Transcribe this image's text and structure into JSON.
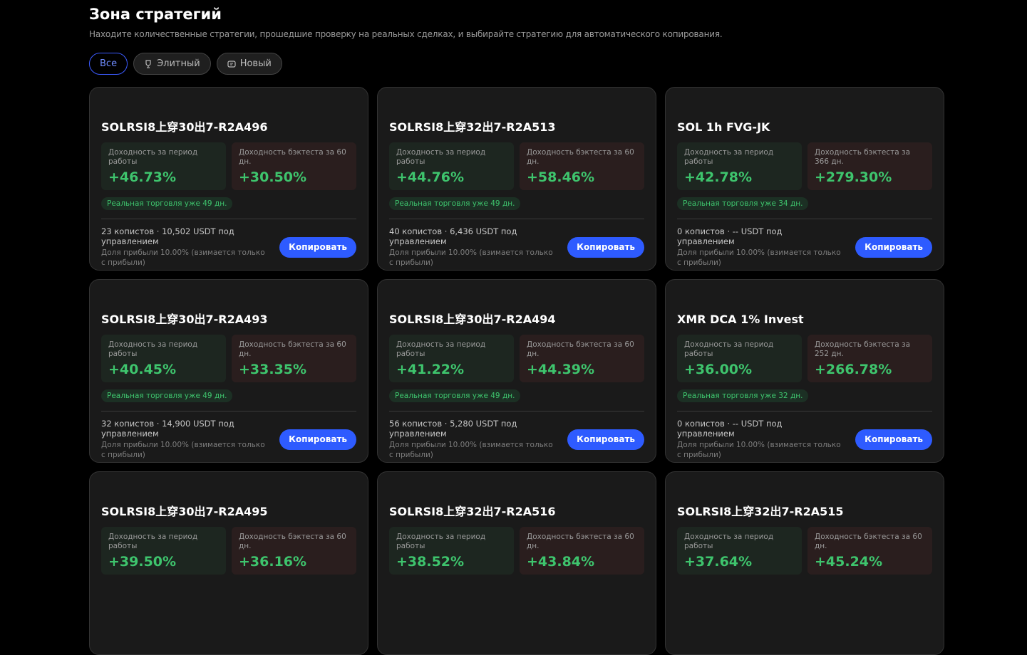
{
  "header": {
    "title": "Зона стратегий",
    "subtitle": "Находите количественные стратегии, прошедшие проверку на реальных сделках, и выбирайте стратегию для автоматического копирования."
  },
  "tabs": [
    "Все",
    "Элитный",
    "Новый"
  ],
  "cards": [
    {
      "name": "SOLRSI8上穿30出7-R2A496",
      "stat1_label": "Доходность за период работы",
      "stat1_value": "+46.73%",
      "stat2_label": "Доходность бэктеста за 60 дн.",
      "stat2_value": "+30.50%",
      "badge": "Реальная торговля уже 49 дн.",
      "info": "23 копистов · 10,502 USDT под управлением",
      "share": "Доля прибыли 10.00% (взимается только с прибыли)",
      "button": "Копировать"
    },
    {
      "name": "SOLRSI8上穿32出7-R2A513",
      "stat1_label": "Доходность за период работы",
      "stat1_value": "+44.76%",
      "stat2_label": "Доходность бэктеста за 60 дн.",
      "stat2_value": "+58.46%",
      "badge": "Реальная торговля уже 49 дн.",
      "info": "40 копистов · 6,436 USDT под управлением",
      "share": "Доля прибыли 10.00% (взимается только с прибыли)",
      "button": "Копировать"
    },
    {
      "name": "SOL 1h FVG-JK",
      "stat1_label": "Доходность за период работы",
      "stat1_value": "+42.78%",
      "stat2_label": "Доходность бэктеста за 366 дн.",
      "stat2_value": "+279.30%",
      "badge": "Реальная торговля уже 34 дн.",
      "info": "0 копистов · -- USDT под управлением",
      "share": "Доля прибыли 10.00% (взимается только с прибыли)",
      "button": "Копировать"
    },
    {
      "name": "SOLRSI8上穿30出7-R2A493",
      "stat1_label": "Доходность за период работы",
      "stat1_value": "+40.45%",
      "stat2_label": "Доходность бэктеста за 60 дн.",
      "stat2_value": "+33.35%",
      "badge": "Реальная торговля уже 49 дн.",
      "info": "32 копистов · 14,900 USDT под управлением",
      "share": "Доля прибыли 10.00% (взимается только с прибыли)",
      "button": "Копировать"
    },
    {
      "name": "SOLRSI8上穿30出7-R2A494",
      "stat1_label": "Доходность за период работы",
      "stat1_value": "+41.22%",
      "stat2_label": "Доходность бэктеста за 60 дн.",
      "stat2_value": "+44.39%",
      "badge": "Реальная торговля уже 49 дн.",
      "info": "56 копистов · 5,280 USDT под управлением",
      "share": "Доля прибыли 10.00% (взимается только с прибыли)",
      "button": "Копировать"
    },
    {
      "name": "XMR DCA 1% Invest",
      "stat1_label": "Доходность за период работы",
      "stat1_value": "+36.00%",
      "stat2_label": "Доходность бэктеста за 252 дн.",
      "stat2_value": "+266.78%",
      "badge": "Реальная торговля уже 32 дн.",
      "info": "0 копистов · -- USDT под управлением",
      "share": "Доля прибыли 10.00% (взимается только с прибыли)",
      "button": "Копировать"
    },
    {
      "name": "SOLRSI8上穿30出7-R2A495",
      "stat1_label": "Доходность за период работы",
      "stat1_value": "+39.50%",
      "stat2_label": "Доходность бэктеста за 60 дн.",
      "stat2_value": "+36.16%"
    },
    {
      "name": "SOLRSI8上穿32出7-R2A516",
      "stat1_label": "Доходность за период работы",
      "stat1_value": "+38.52%",
      "stat2_label": "Доходность бэктеста за 60 дн.",
      "stat2_value": "+43.84%"
    },
    {
      "name": "SOLRSI8上穿32出7-R2A515",
      "stat1_label": "Доходность за период работы",
      "stat1_value": "+37.64%",
      "stat2_label": "Доходность бэктеста за 60 дн.",
      "stat2_value": "+45.24%"
    }
  ]
}
